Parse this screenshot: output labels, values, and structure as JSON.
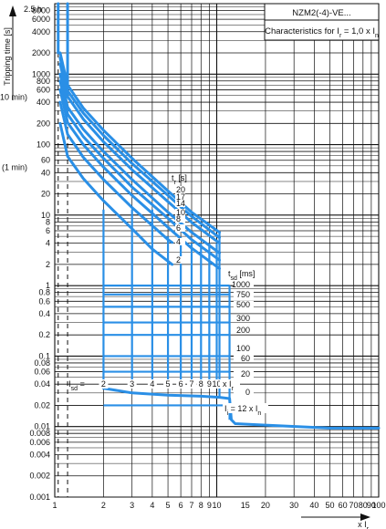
{
  "chart_data": {
    "type": "line",
    "title": "NZM2(-4)-VE...",
    "subtitle_parts": {
      "a": "Characteristics for I",
      "a_sub": "r",
      "b": " = 1,0 x I",
      "b_sub": "n"
    },
    "ylabel": "Tripping time [s]",
    "ytop_label": "2.5 h",
    "yextra_labels": [
      {
        "value": 600,
        "label": "(10 min)"
      },
      {
        "value": 60,
        "label": "(1 min)"
      }
    ],
    "xlabel_parts": {
      "a": "x I",
      "a_sub": "r"
    },
    "xscale": "log",
    "yscale": "log",
    "xlim": [
      1,
      100
    ],
    "ylim": [
      0.001,
      10000
    ],
    "xticks": [
      1,
      2,
      3,
      4,
      5,
      6,
      7,
      8,
      9,
      10,
      15,
      20,
      30,
      40,
      50,
      60,
      70,
      80,
      90,
      100
    ],
    "yticks": [
      0.001,
      0.002,
      0.004,
      0.006,
      0.008,
      0.01,
      0.02,
      0.04,
      0.06,
      0.08,
      0.1,
      0.2,
      0.4,
      0.6,
      0.8,
      1,
      2,
      4,
      6,
      8,
      10,
      20,
      40,
      60,
      100,
      200,
      400,
      600,
      800,
      1000,
      2000,
      4000,
      6000,
      8000
    ],
    "ytick_labels": [
      "0.001",
      "0.002",
      "0.004",
      "0.006",
      "0.008",
      "0.01",
      "0.02",
      "0.04",
      "0.06",
      "0.08",
      "0.1",
      "0.2",
      "0.4",
      "0.6",
      "0.8",
      "1",
      "2",
      "4",
      "6",
      "8",
      "10",
      "20",
      "40",
      "60",
      "100",
      "200",
      "400",
      "600",
      "800",
      "1000",
      "2000",
      "4000",
      "6000",
      "8000"
    ],
    "xtick_labels": [
      "1",
      "2",
      "3",
      "4",
      "5",
      "6",
      "7",
      "8",
      "9",
      "10",
      "15",
      "20",
      "30",
      "40",
      "50",
      "60",
      "70",
      "80",
      "90",
      "100"
    ],
    "grid": true,
    "tr_title": {
      "a": "t",
      "a_sub": "r",
      "b": " [s]"
    },
    "tr_values": [
      "20",
      "17",
      "14",
      "10",
      "8",
      "6",
      "4",
      "2"
    ],
    "tsd_title": {
      "a": "t",
      "a_sub": "sd",
      "b": " [ms]"
    },
    "tsd_values": [
      "1000",
      "750",
      "500",
      "300",
      "200",
      "100",
      "60",
      "20",
      "0"
    ],
    "isd_label": {
      "a": "I",
      "a_sub": "sd",
      "b": " ="
    },
    "isd_values": [
      "2",
      "3",
      "4",
      "5",
      "6",
      "7",
      "8",
      "9",
      "10"
    ],
    "isd_suffix": {
      "a": "x I",
      "a_sub": "r"
    },
    "ii_label": {
      "a": "I",
      "a_sub": "i",
      "b": " = 12 x I",
      "b_sub": "n"
    },
    "series": [
      {
        "name": "20",
        "x": [
          1.08,
          1.2,
          1.5,
          2,
          3,
          5,
          7,
          10.4
        ],
        "y": [
          2000,
          700,
          330,
          160,
          64,
          22,
          11,
          5.7
        ]
      },
      {
        "name": "17",
        "x": [
          1.08,
          1.2,
          1.5,
          2,
          3,
          5,
          7,
          10.4
        ],
        "y": [
          1700,
          580,
          280,
          135,
          54,
          19,
          9.6,
          4.8
        ]
      },
      {
        "name": "14",
        "x": [
          1.08,
          1.2,
          1.5,
          2,
          3,
          5,
          7,
          10.4
        ],
        "y": [
          1400,
          480,
          230,
          110,
          44,
          15.5,
          7.9,
          4
        ]
      },
      {
        "name": "10",
        "x": [
          1.08,
          1.2,
          1.5,
          2,
          3,
          5,
          7,
          10.4
        ],
        "y": [
          1000,
          340,
          165,
          80,
          32,
          11,
          5.7,
          2.9
        ]
      },
      {
        "name": "8",
        "x": [
          1.08,
          1.2,
          1.5,
          2,
          3,
          5,
          7,
          10.4
        ],
        "y": [
          800,
          270,
          130,
          64,
          25,
          9,
          4.5,
          2.3
        ]
      },
      {
        "name": "6",
        "x": [
          1.08,
          1.2,
          1.5,
          2,
          3,
          5,
          7,
          10.4
        ],
        "y": [
          600,
          205,
          100,
          48,
          19,
          6.7,
          3.4,
          1.75
        ]
      },
      {
        "name": "4",
        "x": [
          1.08,
          1.2,
          1.5,
          2,
          3,
          5,
          5.3
        ],
        "y": [
          400,
          140,
          66,
          32,
          12.8,
          4.5,
          4.1
        ]
      },
      {
        "name": "2",
        "x": [
          1.08,
          1.2,
          1.5,
          2,
          3,
          4,
          5.3
        ],
        "y": [
          200,
          68,
          33,
          16,
          6.4,
          3.3,
          2.0
        ]
      }
    ],
    "tsd_levels": [
      1.0,
      0.75,
      0.5,
      0.3,
      0.2,
      0.1,
      0.06,
      0.02
    ],
    "tsd_zero_curve": {
      "x": [
        2,
        3,
        5,
        8,
        10.4,
        12,
        12.3,
        13,
        20,
        50,
        100
      ],
      "y": [
        0.035,
        0.03,
        0.028,
        0.027,
        0.026,
        0.025,
        0.0125,
        0.011,
        0.0105,
        0.0095,
        0.0095
      ]
    },
    "isd_x": [
      2,
      3,
      4,
      5,
      6,
      7,
      8,
      9,
      10
    ],
    "dashed_x": [
      1.05,
      1.2
    ]
  }
}
